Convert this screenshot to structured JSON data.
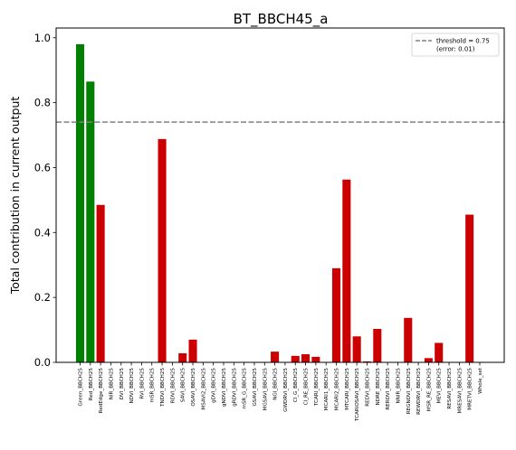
{
  "chart_data": {
    "type": "bar",
    "title": "BT_BBCH45_a",
    "xlabel": "",
    "ylabel": "Total contribution in current output",
    "ylim": [
      0,
      1.03
    ],
    "yticks": [
      0.0,
      0.2,
      0.4,
      0.6,
      0.8,
      1.0
    ],
    "ytick_labels": [
      "0.0",
      "0.2",
      "0.4",
      "0.6",
      "0.8",
      "1.0"
    ],
    "grid": false,
    "legend_position": "top-right",
    "legend_label_1": "threshold = 0.75",
    "legend_label_2": "(error: 0.01)",
    "threshold": 0.74,
    "colors": {
      "above": "#008000",
      "below": "#cc0000",
      "threshold_line": "#808080"
    },
    "categories": [
      "Green_BBCH25",
      "Red_BBCH25",
      "RedEdge_BBCH25",
      "NIR_BBCH25",
      "DVI_BBCH25",
      "NDVI_BBCH25",
      "RVI_BBCH25",
      "mSR_BBCH25",
      "TNDVI_BBCH25",
      "RDVI_BBCH25",
      "SAVI_BBCH25",
      "OSAVI_BBCH25",
      "MSAVI2_BBCH25",
      "gDVI_BBCH25",
      "gNDVI_BBCH25",
      "gRDVI_BBCH25",
      "mSR_G_BBCH25",
      "GSAVI_BBCH25",
      "MGSAVI_BBCH25",
      "NGI_BBCH25",
      "GWDRVI_BBCH25",
      "CI_G_BBCH25",
      "CI_RE_BBCH25",
      "TCARI_BBCH25",
      "MCARI1_BBCH25",
      "MCARI2_BBCH25",
      "MTCARI_BBCH25",
      "TCARIOSAVI_BBCH25",
      "REDVI_BBCH25",
      "NDRE_BBCH25",
      "RERDVI_BBCH25",
      "NNIR_BBCH25",
      "REGNDVI_BBCH25",
      "REWDRVI_BBCH25",
      "MSR_RE_BBCH25",
      "MEVI_BBCH25",
      "RESAVI_BBCH25",
      "MRESAVI_BBCH25",
      "MRETVI_BBCH25",
      "Whole_set"
    ],
    "values": [
      0.98,
      0.865,
      0.485,
      0,
      0,
      0,
      0,
      0,
      0.688,
      0,
      0.028,
      0.07,
      0,
      0,
      0,
      0,
      0,
      0,
      0,
      0.033,
      0,
      0.02,
      0.025,
      0.017,
      0,
      0.29,
      0.563,
      0.08,
      0.003,
      0.103,
      0,
      0,
      0.137,
      0,
      0.013,
      0.06,
      0,
      0,
      0.455,
      0
    ]
  }
}
